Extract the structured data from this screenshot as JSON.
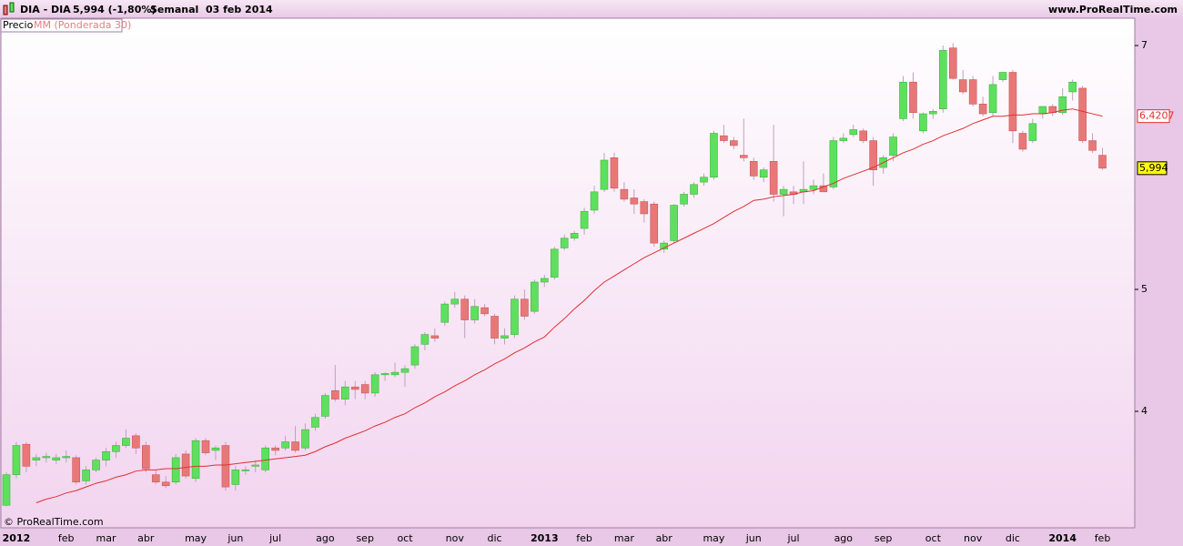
{
  "chart_data": {
    "type": "candlestick",
    "title": "DIA - DIA",
    "subtitle": "5,994 (-1,80%)",
    "period": "Semanal  03 feb 2014",
    "source": "www.ProRealTime.com",
    "copyright": "© ProRealTime.com",
    "categories": [
      null,
      "2012",
      null,
      null,
      null,
      null,
      "feb",
      null,
      null,
      null,
      "mar",
      null,
      null,
      null,
      "abr",
      null,
      null,
      null,
      null,
      "may",
      null,
      null,
      null,
      "jun",
      null,
      null,
      null,
      "jul",
      null,
      null,
      null,
      null,
      "ago",
      null,
      null,
      null,
      "sep",
      null,
      null,
      null,
      "oct",
      null,
      null,
      null,
      null,
      "nov",
      null,
      null,
      null,
      "dic",
      null,
      null,
      null,
      null,
      "2013",
      null,
      null,
      null,
      "feb",
      null,
      null,
      null,
      "mar",
      null,
      null,
      null,
      "abr",
      null,
      null,
      null,
      null,
      "may",
      null,
      null,
      null,
      "jun",
      null,
      null,
      null,
      "jul",
      null,
      null,
      null,
      null,
      "ago",
      null,
      null,
      null,
      "sep",
      null,
      null,
      null,
      null,
      "oct",
      null,
      null,
      null,
      "nov",
      null,
      null,
      null,
      "dic",
      null,
      null,
      null,
      null,
      "2014",
      null,
      null,
      null,
      "feb"
    ],
    "series": [
      {
        "name": "Precio",
        "up_color": "#5ee05e",
        "down_color": "#e87878",
        "last_label": "5,994",
        "open": [
          3.23,
          3.48,
          3.73,
          3.6,
          3.62,
          3.6,
          3.62,
          3.62,
          3.43,
          3.52,
          3.6,
          3.67,
          3.72,
          3.8,
          3.72,
          3.48,
          3.42,
          3.42,
          3.65,
          3.45,
          3.76,
          3.68,
          3.72,
          3.4,
          3.52,
          3.55,
          3.52,
          3.7,
          3.7,
          3.75,
          3.7,
          3.87,
          3.96,
          4.17,
          4.1,
          4.2,
          4.22,
          4.15,
          4.3,
          4.3,
          4.32,
          4.38,
          4.55,
          4.62,
          4.73,
          4.88,
          4.92,
          4.75,
          4.85,
          4.78,
          4.6,
          4.63,
          4.92,
          4.82,
          5.06,
          5.1,
          5.34,
          5.42,
          5.5,
          5.65,
          5.82,
          6.08,
          5.82,
          5.75,
          5.72,
          5.7,
          5.33,
          5.4,
          5.7,
          5.78,
          5.88,
          5.92,
          6.26,
          6.22,
          6.1,
          6.05,
          5.92,
          6.05,
          5.78,
          5.8,
          5.8,
          5.82,
          5.85,
          5.84,
          6.22,
          6.27,
          6.3,
          6.22,
          6.0,
          6.1,
          6.4,
          6.7,
          6.3,
          6.44,
          6.48,
          6.98,
          6.72,
          6.72,
          6.52,
          6.45,
          6.72,
          6.78,
          6.28,
          6.22,
          6.44,
          6.5,
          6.45,
          6.62,
          6.65,
          6.22,
          6.1
        ],
        "high": [
          3.5,
          3.75,
          3.75,
          3.65,
          3.66,
          3.65,
          3.68,
          3.64,
          3.55,
          3.62,
          3.7,
          3.75,
          3.85,
          3.82,
          3.75,
          3.52,
          3.47,
          3.65,
          3.68,
          3.78,
          3.78,
          3.72,
          3.75,
          3.55,
          3.55,
          3.6,
          3.72,
          3.72,
          3.8,
          3.88,
          3.9,
          3.98,
          4.15,
          4.38,
          4.25,
          4.25,
          4.25,
          4.32,
          4.32,
          4.4,
          4.38,
          4.55,
          4.65,
          4.68,
          4.9,
          4.98,
          4.95,
          4.92,
          4.88,
          4.8,
          4.68,
          4.95,
          5.0,
          5.08,
          5.12,
          5.35,
          5.45,
          5.48,
          5.67,
          5.85,
          6.12,
          6.12,
          5.88,
          5.82,
          5.74,
          5.72,
          5.4,
          5.7,
          5.8,
          5.88,
          5.95,
          6.3,
          6.35,
          6.25,
          6.4,
          6.08,
          6.0,
          6.35,
          5.85,
          5.85,
          6.05,
          5.9,
          5.95,
          6.25,
          6.28,
          6.35,
          6.32,
          6.25,
          6.1,
          6.28,
          6.75,
          6.78,
          6.45,
          6.48,
          7.0,
          7.02,
          6.8,
          6.75,
          6.58,
          6.75,
          6.78,
          6.8,
          6.3,
          6.4,
          6.5,
          6.52,
          6.65,
          6.72,
          6.67,
          6.28,
          6.16
        ],
        "low": [
          3.22,
          3.45,
          3.5,
          3.55,
          3.58,
          3.57,
          3.58,
          3.4,
          3.4,
          3.5,
          3.55,
          3.62,
          3.7,
          3.65,
          3.5,
          3.4,
          3.37,
          3.4,
          3.45,
          3.42,
          3.64,
          3.6,
          3.35,
          3.35,
          3.48,
          3.5,
          3.5,
          3.64,
          3.68,
          3.66,
          3.68,
          3.84,
          3.94,
          4.08,
          4.05,
          4.1,
          4.1,
          4.12,
          4.25,
          4.28,
          4.2,
          4.35,
          4.5,
          4.57,
          4.7,
          4.85,
          4.6,
          4.72,
          4.78,
          4.55,
          4.55,
          4.6,
          4.75,
          4.8,
          5.02,
          5.08,
          5.32,
          5.4,
          5.45,
          5.62,
          5.8,
          5.8,
          5.72,
          5.62,
          5.55,
          5.35,
          5.3,
          5.38,
          5.68,
          5.75,
          5.85,
          5.9,
          6.2,
          6.15,
          6.05,
          5.9,
          5.88,
          5.72,
          5.6,
          5.7,
          5.7,
          5.78,
          5.8,
          5.82,
          6.2,
          6.25,
          6.2,
          5.85,
          5.95,
          6.05,
          6.38,
          6.4,
          6.28,
          6.4,
          6.45,
          6.72,
          6.6,
          6.5,
          6.42,
          6.42,
          6.7,
          6.2,
          6.13,
          6.2,
          6.4,
          6.42,
          6.43,
          6.55,
          6.2,
          6.12,
          5.98
        ],
        "close": [
          3.48,
          3.72,
          3.55,
          3.62,
          3.63,
          3.62,
          3.63,
          3.42,
          3.52,
          3.6,
          3.67,
          3.72,
          3.78,
          3.7,
          3.53,
          3.42,
          3.39,
          3.62,
          3.47,
          3.76,
          3.66,
          3.7,
          3.38,
          3.52,
          3.52,
          3.56,
          3.7,
          3.68,
          3.75,
          3.68,
          3.85,
          3.95,
          4.13,
          4.1,
          4.2,
          4.18,
          4.15,
          4.3,
          4.31,
          4.32,
          4.35,
          4.53,
          4.63,
          4.6,
          4.88,
          4.92,
          4.75,
          4.86,
          4.8,
          4.6,
          4.62,
          4.92,
          4.78,
          5.06,
          5.09,
          5.33,
          5.42,
          5.46,
          5.64,
          5.8,
          6.06,
          5.83,
          5.74,
          5.7,
          5.62,
          5.38,
          5.38,
          5.69,
          5.78,
          5.86,
          5.92,
          6.28,
          6.22,
          6.18,
          6.08,
          5.93,
          5.98,
          5.78,
          5.82,
          5.78,
          5.82,
          5.85,
          5.8,
          6.22,
          6.24,
          6.31,
          6.22,
          5.98,
          6.08,
          6.25,
          6.7,
          6.45,
          6.44,
          6.46,
          6.96,
          6.73,
          6.62,
          6.52,
          6.44,
          6.68,
          6.78,
          6.3,
          6.15,
          6.36,
          6.5,
          6.45,
          6.58,
          6.7,
          6.22,
          6.14,
          5.994
        ]
      },
      {
        "name": "MM (Ponderada 30)",
        "color": "#e03030",
        "last_label": "6,4207",
        "values": [
          null,
          null,
          null,
          3.25,
          3.28,
          3.3,
          3.33,
          3.35,
          3.38,
          3.41,
          3.43,
          3.46,
          3.48,
          3.51,
          3.52,
          3.52,
          3.53,
          3.53,
          3.54,
          3.55,
          3.55,
          3.56,
          3.56,
          3.57,
          3.58,
          3.59,
          3.6,
          3.61,
          3.62,
          3.63,
          3.64,
          3.67,
          3.71,
          3.74,
          3.78,
          3.81,
          3.84,
          3.88,
          3.91,
          3.95,
          3.98,
          4.03,
          4.07,
          4.12,
          4.16,
          4.21,
          4.25,
          4.3,
          4.34,
          4.39,
          4.43,
          4.48,
          4.52,
          4.57,
          4.61,
          4.69,
          4.76,
          4.84,
          4.91,
          4.99,
          5.06,
          5.11,
          5.16,
          5.21,
          5.26,
          5.3,
          5.34,
          5.38,
          5.42,
          5.46,
          5.5,
          5.54,
          5.59,
          5.64,
          5.68,
          5.73,
          5.74,
          5.76,
          5.77,
          5.78,
          5.8,
          5.81,
          5.84,
          5.87,
          5.91,
          5.94,
          5.97,
          6.0,
          6.04,
          6.08,
          6.12,
          6.15,
          6.19,
          6.22,
          6.26,
          6.29,
          6.32,
          6.36,
          6.39,
          6.42,
          6.42,
          6.43,
          6.43,
          6.44,
          6.44,
          6.45,
          6.47,
          6.48,
          6.46,
          6.44,
          6.4207
        ]
      }
    ],
    "ylim": [
      3.045,
      7.224
    ],
    "yticks": [
      4,
      5,
      7
    ]
  }
}
